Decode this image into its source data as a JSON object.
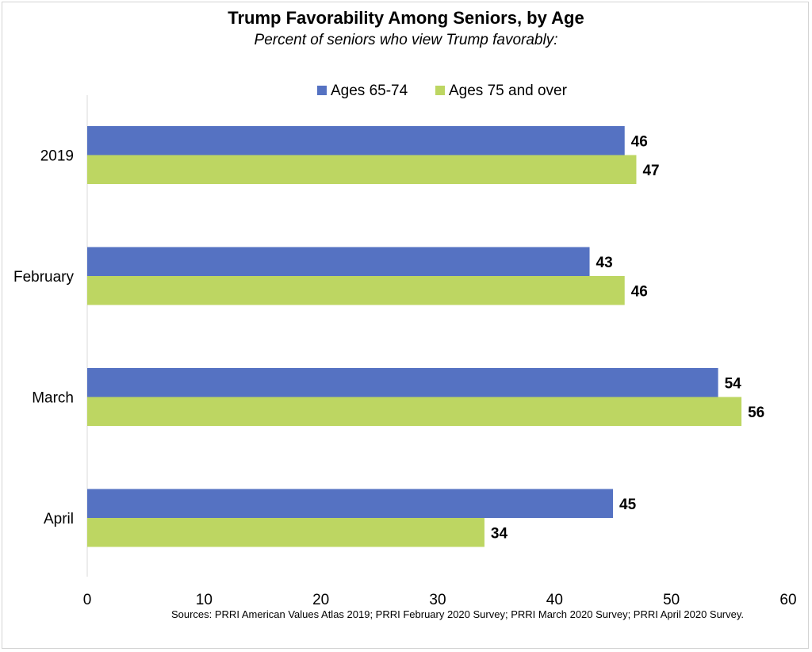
{
  "chart_data": {
    "type": "bar",
    "orientation": "horizontal",
    "title": "Trump Favorability Among Seniors, by Age",
    "subtitle": "Percent of seniors who view Trump favorably:",
    "categories": [
      "2019",
      "February",
      "March",
      "April"
    ],
    "series": [
      {
        "name": "Ages 65-74",
        "color": "#5572C2",
        "values": [
          46,
          43,
          54,
          45
        ]
      },
      {
        "name": "Ages 75 and over",
        "color": "#BDD662",
        "values": [
          47,
          46,
          56,
          34
        ]
      }
    ],
    "xlim": [
      0,
      60
    ],
    "xticks": [
      0,
      10,
      20,
      30,
      40,
      50,
      60
    ],
    "legend_position": "top",
    "grid": false,
    "data_labels": true
  },
  "source_note": "Sources: PRRI American Values Atlas 2019;  PRRI February 2020 Survey; PRRI March 2020 Survey; PRRI April 2020 Survey."
}
